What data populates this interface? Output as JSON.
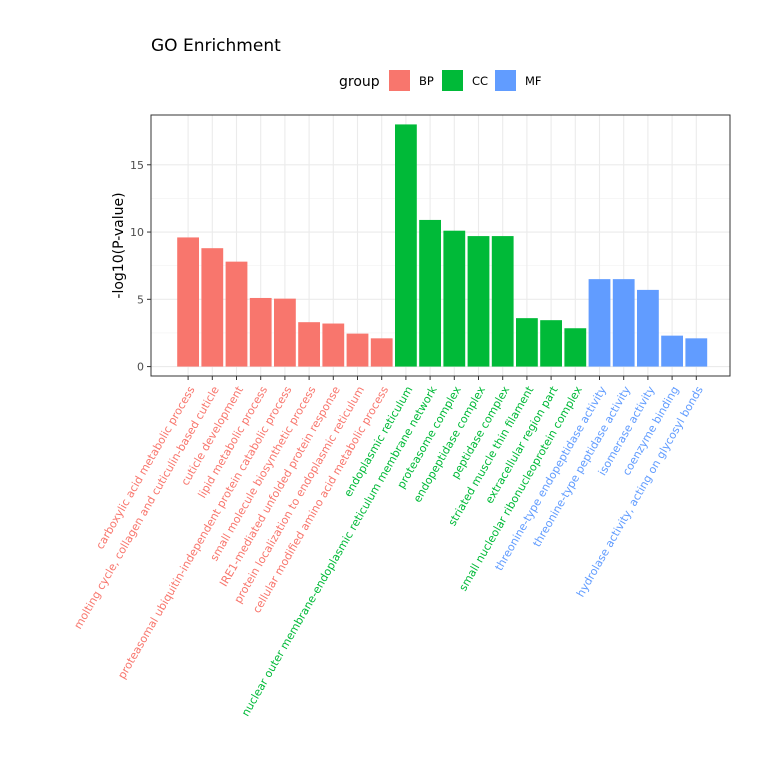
{
  "chart_data": {
    "type": "bar",
    "title": "GO Enrichment",
    "xlabel": "",
    "ylabel": "-log10(P-value)",
    "ylim": [
      -0.7,
      18.7
    ],
    "yticks": [
      0,
      5,
      10,
      15
    ],
    "grid": true,
    "legend": {
      "title": "group",
      "placement": "top",
      "entries": [
        {
          "name": "BP",
          "color": "#F8766D"
        },
        {
          "name": "CC",
          "color": "#00BA38"
        },
        {
          "name": "MF",
          "color": "#619CFF"
        }
      ]
    },
    "categories": [
      "carboxylic acid metabolic process",
      "molting cycle, collagen and cuticulin-based cuticle",
      "cuticle development",
      "lipid metabolic process",
      "proteasomal ubiquitin-independent protein catabolic process",
      "small molecule biosynthetic process",
      "IRE1-mediated unfolded protein response",
      "protein localization to endoplasmic reticulum",
      "cellular modified amino acid metabolic process",
      "endoplasmic reticulum",
      "nuclear outer membrane-endoplasmic reticulum membrane network",
      "proteasome complex",
      "endopeptidase complex",
      "peptidase complex",
      "striated muscle thin filament",
      "extracellular region part",
      "small nucleolar ribonucleoprotein complex",
      "threonine-type endopeptidase activity",
      "threonine-type peptidase activity",
      "isomerase activity",
      "coenzyme binding",
      "hydrolase activity, acting on glycosyl bonds"
    ],
    "values": [
      9.6,
      8.8,
      7.8,
      5.1,
      5.05,
      3.3,
      3.2,
      2.45,
      2.1,
      18.0,
      10.9,
      10.1,
      9.7,
      9.7,
      3.6,
      3.45,
      2.85,
      6.5,
      6.5,
      5.7,
      2.3,
      2.1
    ],
    "groups": [
      "BP",
      "BP",
      "BP",
      "BP",
      "BP",
      "BP",
      "BP",
      "BP",
      "BP",
      "CC",
      "CC",
      "CC",
      "CC",
      "CC",
      "CC",
      "CC",
      "CC",
      "MF",
      "MF",
      "MF",
      "MF",
      "MF"
    ]
  }
}
